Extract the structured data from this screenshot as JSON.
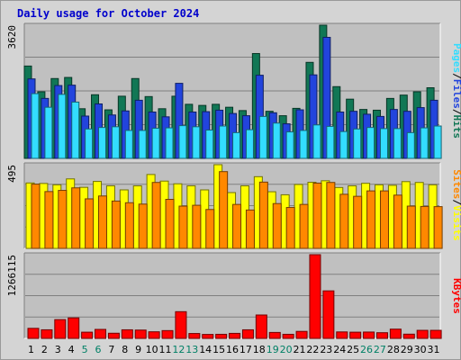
{
  "title": "Daily usage for October 2024",
  "colors": {
    "pages": "#33ddff",
    "files": "#2244dd",
    "hits": "#117755",
    "sites": "#ff8800",
    "visits": "#ffff00",
    "kbytes": "#ff0000",
    "weekday": "#000000",
    "weekend": "#008066",
    "panel_bg": "#c0c0c0",
    "separator": "#ffffff"
  },
  "chart_data": [
    {
      "type": "bar",
      "panel": "pages-files-hits",
      "y_max_label": "3620",
      "ylim": [
        0,
        3620
      ],
      "categories": [
        "1",
        "2",
        "3",
        "4",
        "5",
        "6",
        "7",
        "8",
        "9",
        "10",
        "11",
        "12",
        "13",
        "14",
        "15",
        "16",
        "17",
        "18",
        "19",
        "20",
        "21",
        "22",
        "23",
        "24",
        "25",
        "26",
        "27",
        "28",
        "29",
        "30",
        "31"
      ],
      "weekend_days": [
        "5",
        "6",
        "12",
        "13",
        "19",
        "20",
        "26",
        "27"
      ],
      "labels": [
        "Pages",
        "/",
        "Files",
        "/",
        "Hits"
      ],
      "series": [
        {
          "name": "Hits",
          "values": [
            2510,
            1810,
            2170,
            2200,
            1350,
            1730,
            1320,
            1690,
            2170,
            1680,
            1350,
            1690,
            1470,
            1440,
            1470,
            1390,
            1300,
            2850,
            1280,
            1160,
            1360,
            2610,
            3620,
            1950,
            1610,
            1330,
            1310,
            1630,
            1720,
            1810,
            1920
          ]
        },
        {
          "name": "Files",
          "values": [
            2160,
            1630,
            1980,
            1990,
            1150,
            1480,
            1180,
            1290,
            1580,
            1260,
            1130,
            2040,
            1260,
            1270,
            1310,
            1220,
            1160,
            2260,
            1240,
            940,
            1320,
            2270,
            3290,
            1260,
            1280,
            1200,
            1140,
            1330,
            1280,
            1380,
            1580
          ]
        },
        {
          "name": "Pages",
          "values": [
            1760,
            1390,
            1740,
            1530,
            800,
            840,
            860,
            760,
            760,
            820,
            830,
            890,
            860,
            770,
            880,
            700,
            780,
            1140,
            960,
            720,
            760,
            910,
            870,
            730,
            800,
            840,
            810,
            810,
            700,
            830,
            880
          ]
        }
      ]
    },
    {
      "type": "bar",
      "panel": "sites-visits",
      "y_max_label": "495",
      "ylim": [
        0,
        495
      ],
      "categories": [
        "1",
        "2",
        "3",
        "4",
        "5",
        "6",
        "7",
        "8",
        "9",
        "10",
        "11",
        "12",
        "13",
        "14",
        "15",
        "16",
        "17",
        "18",
        "19",
        "20",
        "21",
        "22",
        "23",
        "24",
        "25",
        "26",
        "27",
        "28",
        "29",
        "30",
        "31"
      ],
      "labels": [
        "Sites",
        "/",
        "Visits"
      ],
      "series": [
        {
          "name": "Visits",
          "values": [
            387,
            384,
            376,
            411,
            361,
            396,
            370,
            346,
            370,
            437,
            398,
            382,
            370,
            346,
            495,
            330,
            370,
            424,
            335,
            317,
            378,
            391,
            400,
            360,
            370,
            385,
            376,
            373,
            395,
            390,
            376
          ]
        },
        {
          "name": "Sites",
          "values": [
            380,
            336,
            343,
            358,
            293,
            310,
            280,
            270,
            262,
            390,
            290,
            250,
            255,
            230,
            454,
            260,
            227,
            392,
            265,
            242,
            260,
            386,
            390,
            320,
            308,
            340,
            340,
            315,
            250,
            248,
            247
          ]
        }
      ]
    },
    {
      "type": "bar",
      "panel": "kbytes",
      "y_max_label": "1266115",
      "ylim": [
        0,
        1266115
      ],
      "categories": [
        "1",
        "2",
        "3",
        "4",
        "5",
        "6",
        "7",
        "8",
        "9",
        "10",
        "11",
        "12",
        "13",
        "14",
        "15",
        "16",
        "17",
        "18",
        "19",
        "20",
        "21",
        "22",
        "23",
        "24",
        "25",
        "26",
        "27",
        "28",
        "29",
        "30",
        "31"
      ],
      "labels": [
        "KBytes"
      ],
      "series": [
        {
          "name": "KBytes",
          "values": [
            152000,
            130000,
            284000,
            310000,
            94000,
            136000,
            78000,
            130000,
            126000,
            100000,
            118000,
            404000,
            74000,
            60000,
            62000,
            76000,
            130000,
            354000,
            90000,
            62000,
            106000,
            1266115,
            719000,
            98000,
            94000,
            96000,
            86000,
            140000,
            64000,
            122000,
            122000
          ]
        }
      ]
    }
  ]
}
